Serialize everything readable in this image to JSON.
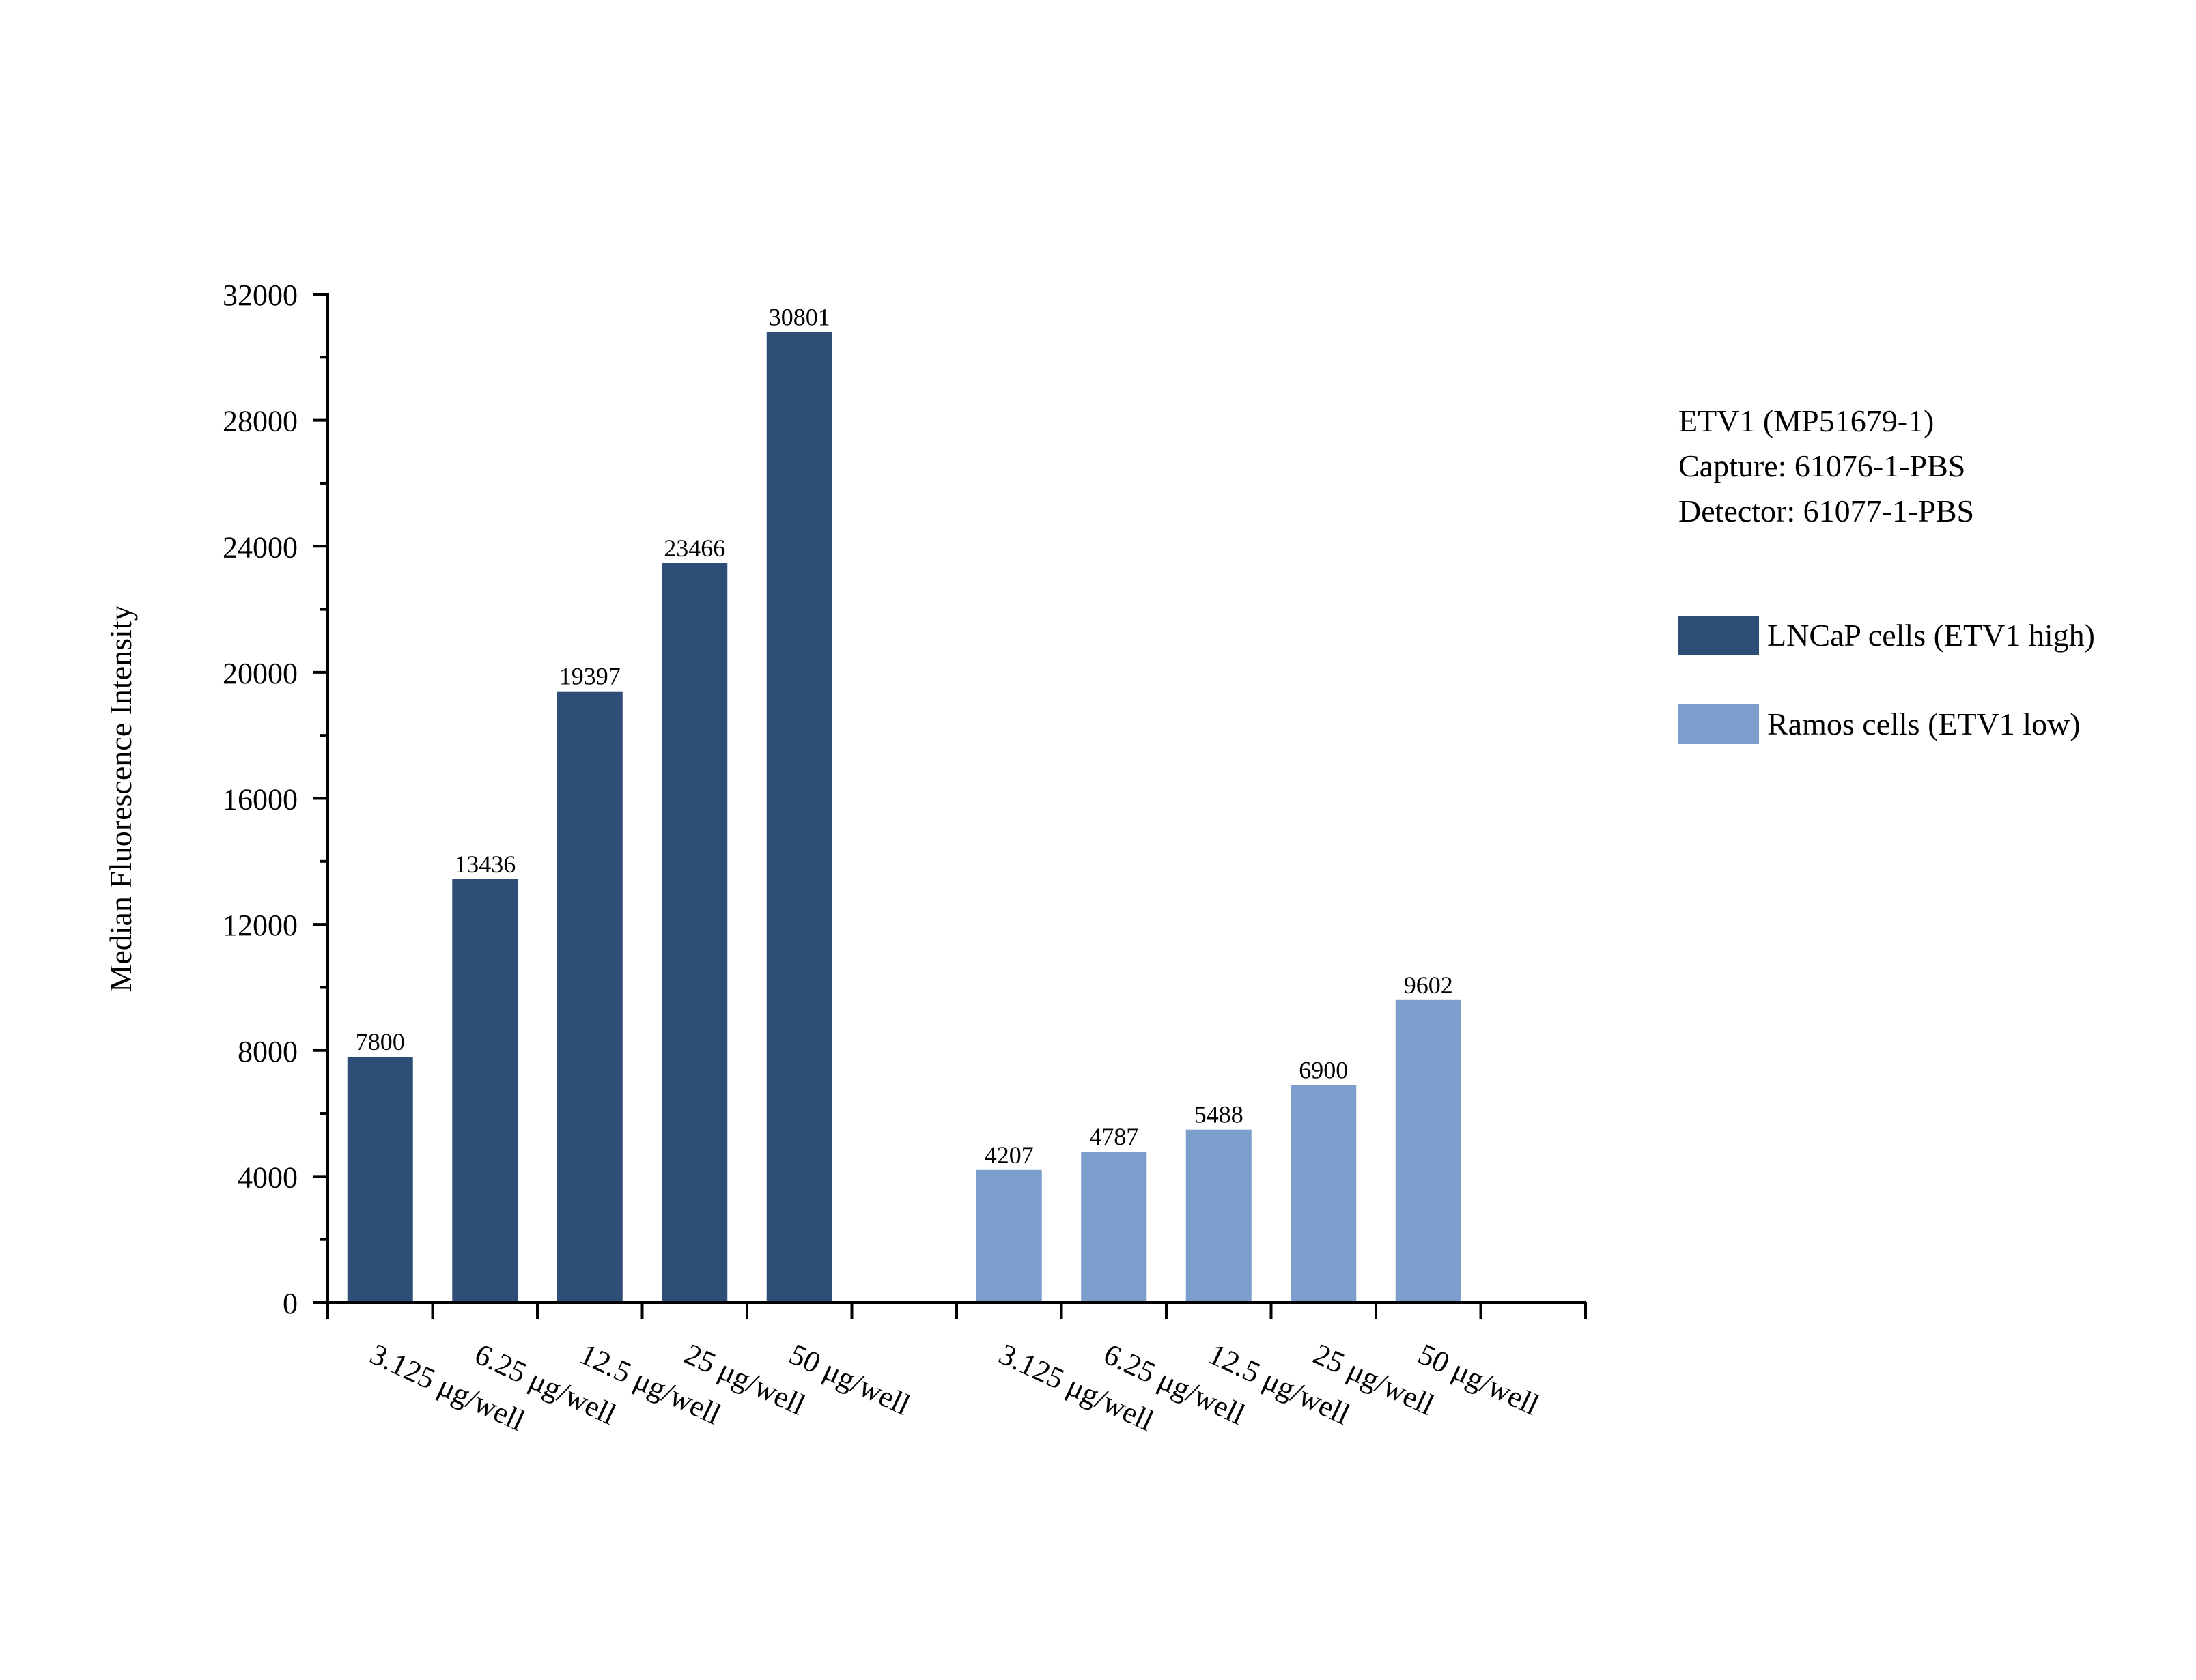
{
  "chart_data": {
    "type": "bar",
    "ylabel": "Median Fluorescence Intensity",
    "xlabel": "",
    "ylim": [
      0,
      32000
    ],
    "yticks": [
      0,
      4000,
      8000,
      12000,
      16000,
      20000,
      24000,
      28000,
      32000
    ],
    "grid": false,
    "legend_position": "right",
    "series": [
      {
        "name": "LNCaP cells (ETV1 high)",
        "color": "#2f4e77",
        "categories": [
          "3.125 μg/well",
          "6.25 μg/well",
          "12.5 μg/well",
          "25 μg/well",
          "50 μg/well"
        ],
        "values": [
          7800,
          13436,
          19397,
          23466,
          30801
        ]
      },
      {
        "name": "Ramos cells (ETV1 low)",
        "color": "#7b9ecd",
        "categories": [
          "3.125 μg/well",
          "6.25 μg/well",
          "12.5 μg/well",
          "25 μg/well",
          "50 μg/well"
        ],
        "values": [
          4207,
          4787,
          5488,
          6900,
          9602
        ]
      }
    ]
  },
  "info_lines": [
    "ETV1 (MP51679-1)",
    "Capture: 61076-1-PBS",
    "Detector: 61077-1-PBS"
  ]
}
